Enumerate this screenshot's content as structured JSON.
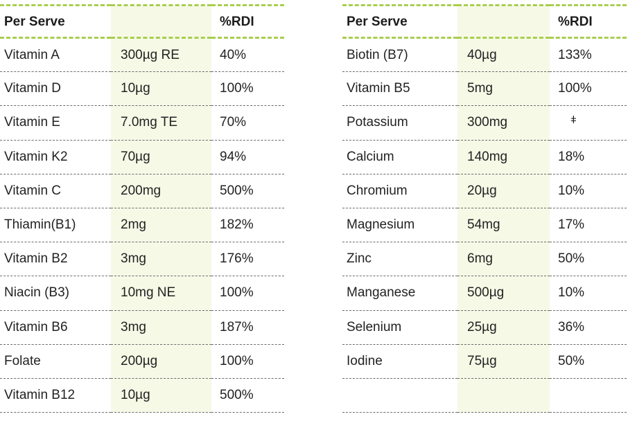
{
  "left_table": {
    "header": {
      "name": "Per Serve",
      "amount": "",
      "rdi": "%RDI"
    },
    "rows": [
      {
        "name": "Vitamin A",
        "amount": "300µg RE",
        "rdi": "40%"
      },
      {
        "name": "Vitamin D",
        "amount": "10µg",
        "rdi": "100%"
      },
      {
        "name": "Vitamin E",
        "amount": "7.0mg TE",
        "rdi": "70%"
      },
      {
        "name": "Vitamin K2",
        "amount": "70µg",
        "rdi": "94%"
      },
      {
        "name": "Vitamin C",
        "amount": "200mg",
        "rdi": "500%"
      },
      {
        "name": "Thiamin(B1)",
        "amount": "2mg",
        "rdi": "182%"
      },
      {
        "name": "Vitamin B2",
        "amount": "3mg",
        "rdi": "176%"
      },
      {
        "name": "Niacin (B3)",
        "amount": "10mg NE",
        "rdi": "100%"
      },
      {
        "name": "Vitamin B6",
        "amount": "3mg",
        "rdi": "187%"
      },
      {
        "name": "Folate",
        "amount": "200µg",
        "rdi": "100%"
      },
      {
        "name": "Vitamin B12",
        "amount": "10µg",
        "rdi": "500%"
      }
    ]
  },
  "right_table": {
    "header": {
      "name": "Per Serve",
      "amount": "",
      "rdi": "%RDI"
    },
    "rows": [
      {
        "name": "Biotin (B7)",
        "amount": "40µg",
        "rdi": "133%"
      },
      {
        "name": "Vitamin B5",
        "amount": "5mg",
        "rdi": "100%"
      },
      {
        "name": "Potassium",
        "amount": "300mg",
        "rdi": "ǂ"
      },
      {
        "name": "Calcium",
        "amount": " 140mg",
        "rdi": "18%"
      },
      {
        "name": "Chromium",
        "amount": " 20µg",
        "rdi": "10%"
      },
      {
        "name": "Magnesium",
        "amount": "54mg",
        "rdi": "17%"
      },
      {
        "name": "Zinc",
        "amount": "6mg",
        "rdi": "50%"
      },
      {
        "name": "Manganese",
        "amount": "500µg",
        "rdi": "10%"
      },
      {
        "name": "Selenium",
        "amount": "25µg",
        "rdi": "36%"
      },
      {
        "name": "Iodine",
        "amount": "75µg",
        "rdi": "50%"
      },
      {
        "name": "",
        "amount": "",
        "rdi": ""
      }
    ]
  },
  "colors": {
    "accent_dash": "#a8ce4f",
    "column_highlight": "#f6f9e6",
    "row_divider": "#6b6b6b"
  }
}
